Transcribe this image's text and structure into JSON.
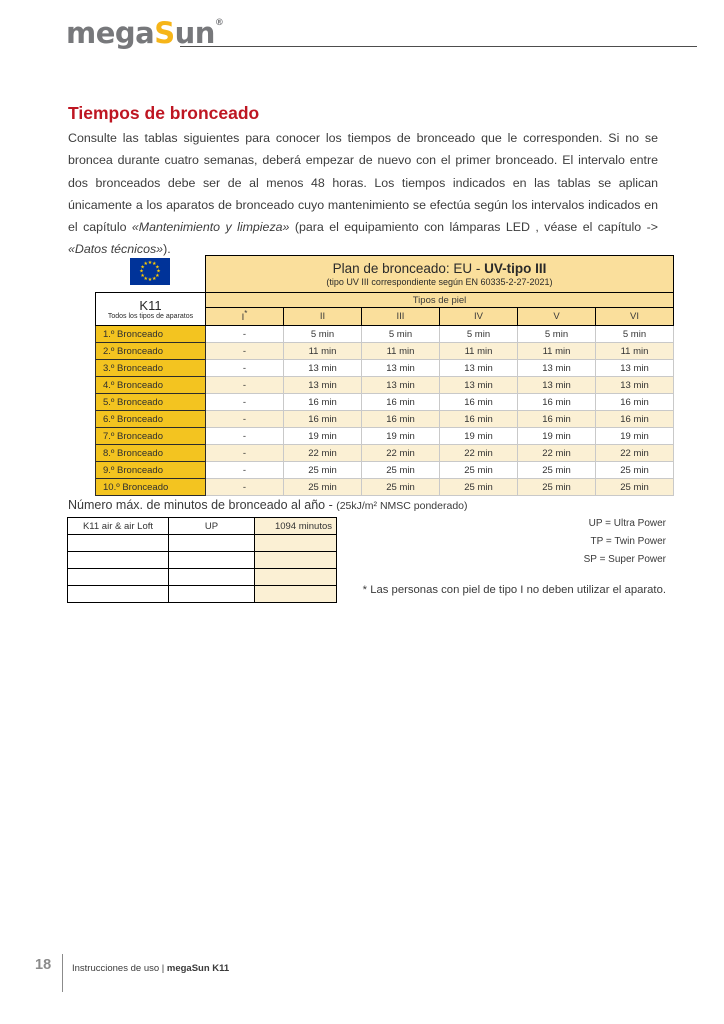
{
  "colors": {
    "accent_red": "#be1622",
    "logo_gray": "#77787b",
    "logo_yellow": "#f6b519",
    "table_gold": "#f3c420",
    "table_cream": "#fbf0d4",
    "header_tan": "#fadf9c",
    "eu_blue": "#003399",
    "eu_star_yellow": "#ffcc00"
  },
  "logo": {
    "mega": "mega",
    "s": "S",
    "un": "un",
    "reg": "®"
  },
  "page": {
    "title": "Tiempos de bronceado"
  },
  "paragraph": {
    "part1": "Consulte las tablas siguientes para conocer los tiempos de bronceado que le corresponden. Si no se broncea durante cuatro semanas, deberá empezar de nuevo con el primer bronceado. El intervalo entre dos bronceados debe ser de al menos 48 horas. Los tiempos indicados en las tablas se aplican únicamente a los aparatos de bronceado cuyo mantenimiento se efectúa según los intervalos indicados en el capítulo ",
    "italic1": "«Mantenimiento y limpieza»",
    "part2": " (para el equipamiento con lámparas LED , véase el capítulo -> ",
    "italic2": "«Datos técnicos»",
    "part3": ")."
  },
  "main_table": {
    "flag": "eu-flag",
    "header_title_prefix": "Plan de bronceado: EU - ",
    "header_title_bold": "UV-tipo III",
    "header_subtitle": "(tipo UV III correspondiente según EN 60335-2-27-2021)",
    "device": "K11",
    "device_sub": "Todos los tipos de aparatos",
    "skin_types_label": "Tipos de piel",
    "columns": [
      "I",
      "II",
      "III",
      "IV",
      "V",
      "VI"
    ],
    "first_column_note_marker": "*",
    "rows": [
      {
        "label": "1.º Bronceado",
        "values": [
          "-",
          "5 min",
          "5 min",
          "5 min",
          "5 min",
          "5 min"
        ]
      },
      {
        "label": "2.º Bronceado",
        "values": [
          "-",
          "11 min",
          "11 min",
          "11 min",
          "11 min",
          "11 min"
        ]
      },
      {
        "label": "3.º Bronceado",
        "values": [
          "-",
          "13 min",
          "13 min",
          "13 min",
          "13 min",
          "13 min"
        ]
      },
      {
        "label": "4.º Bronceado",
        "values": [
          "-",
          "13 min",
          "13 min",
          "13 min",
          "13 min",
          "13 min"
        ]
      },
      {
        "label": "5.º Bronceado",
        "values": [
          "-",
          "16 min",
          "16 min",
          "16 min",
          "16 min",
          "16 min"
        ]
      },
      {
        "label": "6.º Bronceado",
        "values": [
          "-",
          "16 min",
          "16 min",
          "16 min",
          "16 min",
          "16 min"
        ]
      },
      {
        "label": "7.º Bronceado",
        "values": [
          "-",
          "19 min",
          "19 min",
          "19 min",
          "19 min",
          "19 min"
        ]
      },
      {
        "label": "8.º Bronceado",
        "values": [
          "-",
          "22 min",
          "22 min",
          "22 min",
          "22 min",
          "22 min"
        ]
      },
      {
        "label": "9.º Bronceado",
        "values": [
          "-",
          "25 min",
          "25 min",
          "25 min",
          "25 min",
          "25 min"
        ]
      },
      {
        "label": "10.º Bronceado",
        "values": [
          "-",
          "25 min",
          "25 min",
          "25 min",
          "25 min",
          "25 min"
        ]
      }
    ]
  },
  "annual": {
    "title_main": "Número máx. de minutos de bronceado al año - ",
    "title_small": "(25kJ/m² NMSC ponderado)",
    "rows": [
      [
        "K11 air & air Loft",
        "UP",
        "1094 minutos"
      ],
      [
        "",
        "",
        ""
      ],
      [
        "",
        "",
        ""
      ],
      [
        "",
        "",
        ""
      ],
      [
        "",
        "",
        ""
      ]
    ]
  },
  "legend": [
    "UP = Ultra Power",
    "TP = Twin Power",
    "SP = Super Power"
  ],
  "footnote": "* Las personas con piel de tipo I no deben utilizar el aparato.",
  "footer": {
    "page_number": "18",
    "doc_label": "Instrucciones de uso | ",
    "doc_label_bold": "megaSun K11"
  }
}
